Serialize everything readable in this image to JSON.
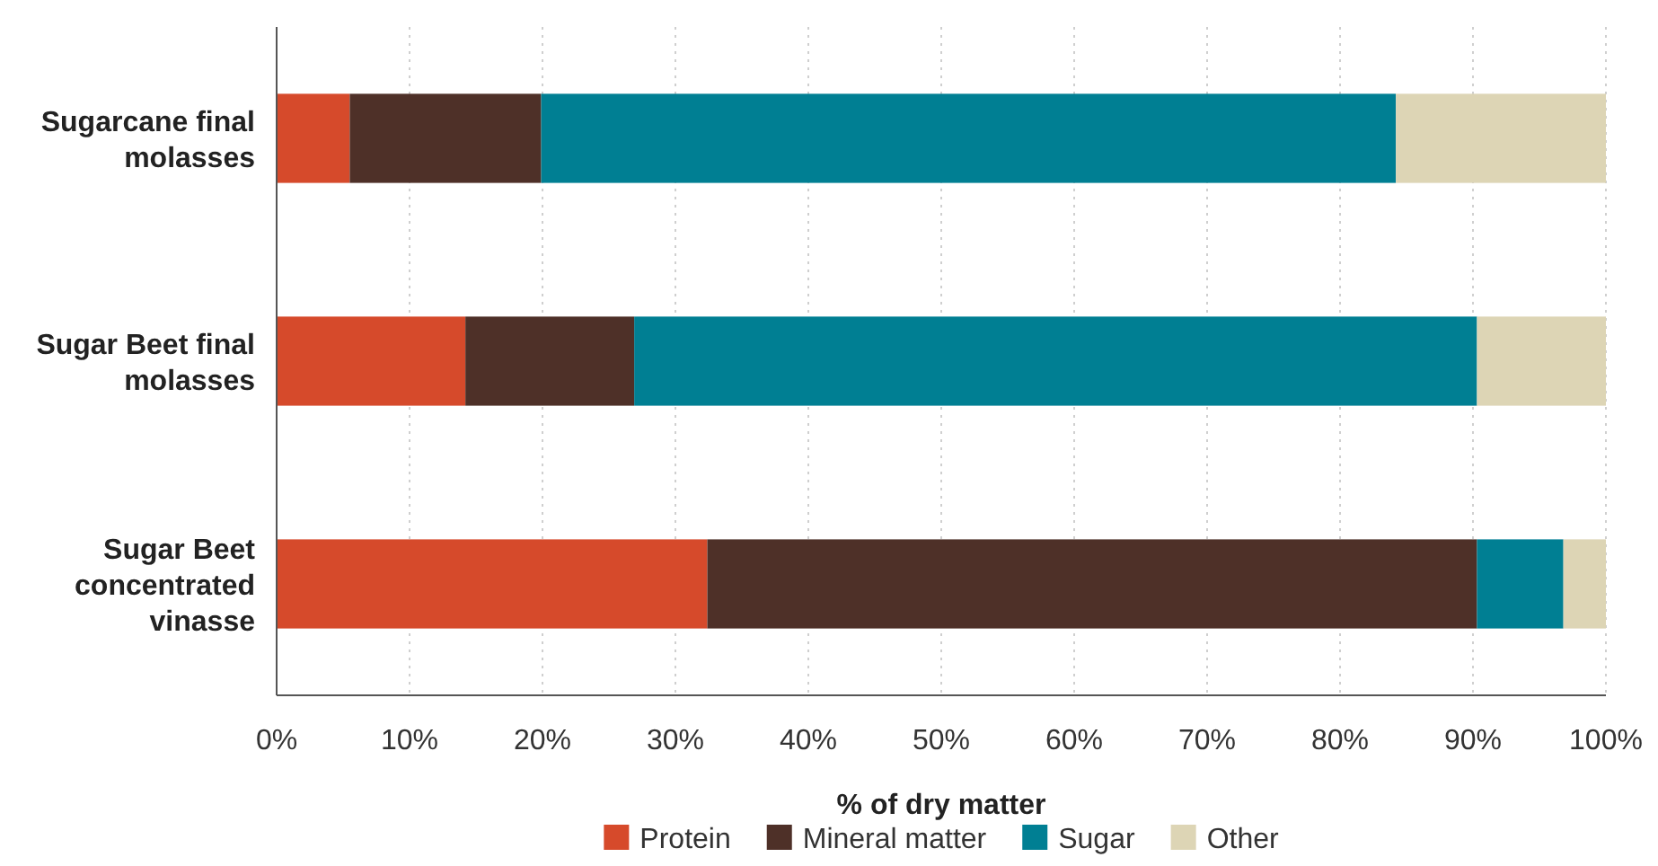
{
  "chart_data": {
    "type": "bar",
    "orientation": "horizontal",
    "stacked": true,
    "categories": [
      "Sugarcane final molasses",
      "Sugar Beet final molasses",
      "Sugar Beet concentrated vinasse"
    ],
    "series": [
      {
        "name": "Protein",
        "color": "#d64a2b",
        "values": [
          5.5,
          14.2,
          32.4
        ]
      },
      {
        "name": "Mineral matter",
        "color": "#4e3028",
        "values": [
          14.4,
          12.7,
          57.9
        ]
      },
      {
        "name": "Sugar",
        "color": "#007f93",
        "values": [
          64.3,
          63.4,
          6.5
        ]
      },
      {
        "name": "Other",
        "color": "#ddd5b5",
        "values": [
          15.8,
          9.7,
          3.2
        ]
      }
    ],
    "xlabel": "% of dry matter",
    "xlim": [
      0,
      100
    ],
    "xticks": [
      {
        "value": 0,
        "label": "0%"
      },
      {
        "value": 10,
        "label": "10%"
      },
      {
        "value": 20,
        "label": "20%"
      },
      {
        "value": 30,
        "label": "30%"
      },
      {
        "value": 40,
        "label": "40%"
      },
      {
        "value": 50,
        "label": "50%"
      },
      {
        "value": 60,
        "label": "60%"
      },
      {
        "value": 70,
        "label": "70%"
      },
      {
        "value": 80,
        "label": "80%"
      },
      {
        "value": 90,
        "label": "90%"
      },
      {
        "value": 100,
        "label": "100%"
      }
    ],
    "grid": "x",
    "legend": "bottom"
  }
}
